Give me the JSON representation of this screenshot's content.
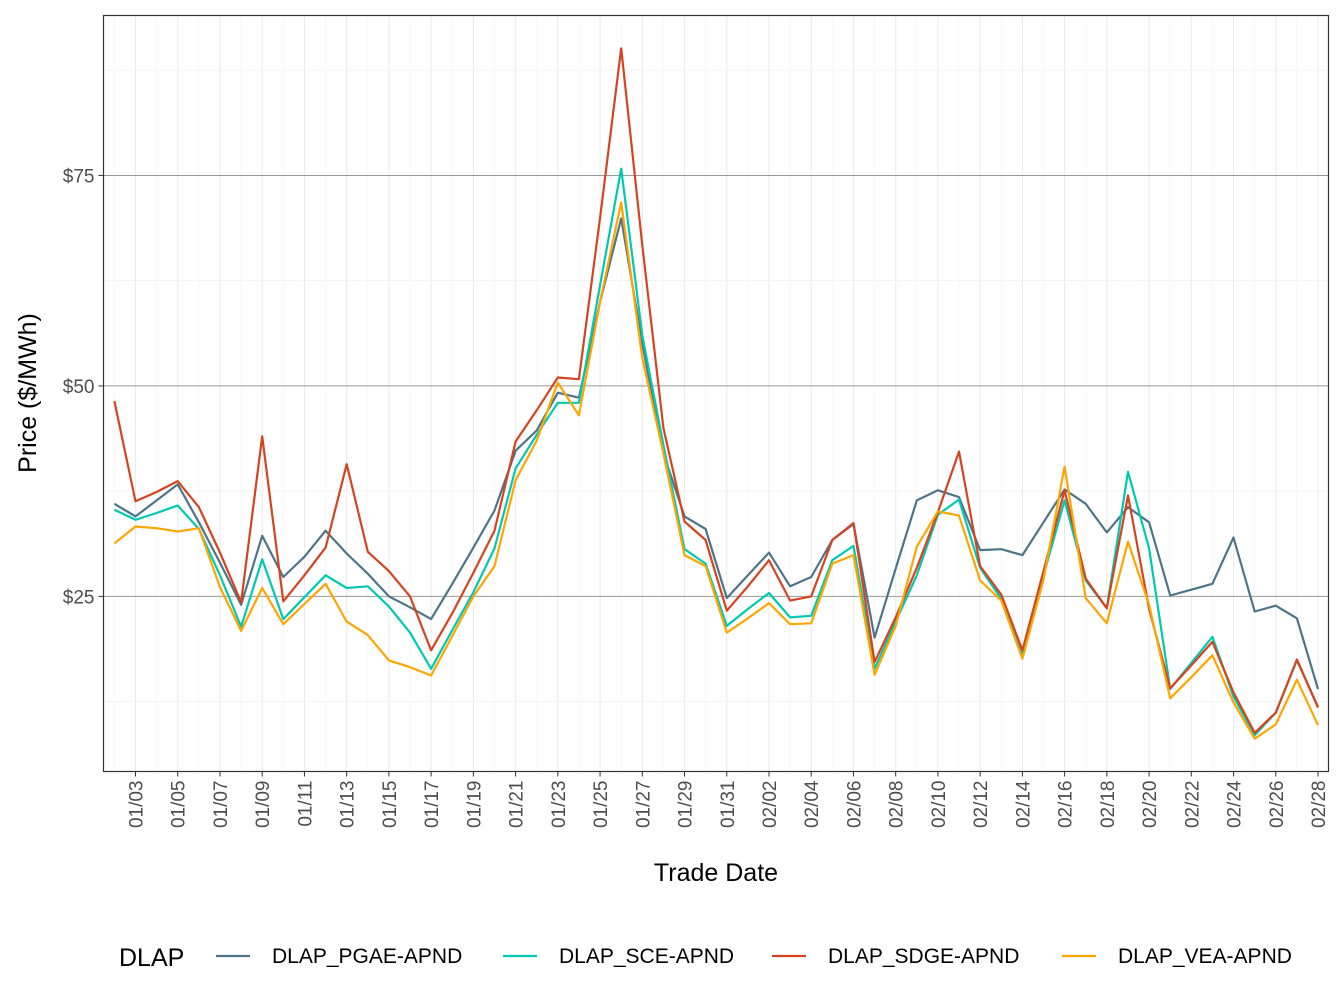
{
  "chart_data": {
    "type": "line",
    "title": "",
    "xlabel": "Trade Date",
    "ylabel": "Price ($/MWh)",
    "ylim": [
      4.2,
      94
    ],
    "y_ticks": [
      25,
      50,
      75
    ],
    "y_tick_labels": [
      "$25",
      "$50",
      "$75"
    ],
    "x_start": "01/02",
    "x_end": "02/28",
    "x_tick_labels": [
      "01/03",
      "01/05",
      "01/07",
      "01/09",
      "01/11",
      "01/13",
      "01/15",
      "01/17",
      "01/19",
      "01/21",
      "01/23",
      "01/25",
      "01/27",
      "01/29",
      "01/31",
      "02/02",
      "02/04",
      "02/06",
      "02/08",
      "02/10",
      "02/12",
      "02/14",
      "02/16",
      "02/18",
      "02/20",
      "02/22",
      "02/24",
      "02/26",
      "02/28"
    ],
    "grid": true,
    "legend": {
      "title": "DLAP",
      "position": "bottom"
    },
    "x": [
      "01/02",
      "01/03",
      "01/04",
      "01/05",
      "01/06",
      "01/07",
      "01/08",
      "01/09",
      "01/10",
      "01/11",
      "01/12",
      "01/13",
      "01/14",
      "01/15",
      "01/16",
      "01/17",
      "01/18",
      "01/19",
      "01/20",
      "01/21",
      "01/22",
      "01/23",
      "01/24",
      "01/25",
      "01/26",
      "01/27",
      "01/28",
      "01/29",
      "01/30",
      "01/31",
      "02/01",
      "02/02",
      "02/03",
      "02/04",
      "02/05",
      "02/06",
      "02/07",
      "02/08",
      "02/09",
      "02/10",
      "02/11",
      "02/12",
      "02/13",
      "02/14",
      "02/15",
      "02/16",
      "02/17",
      "02/18",
      "02/19",
      "02/20",
      "02/21",
      "02/22",
      "02/23",
      "02/24",
      "02/25",
      "02/26",
      "02/27",
      "02/28"
    ],
    "series": [
      {
        "name": "DLAP_PGAE-APND",
        "color": "#4e7489",
        "values": [
          36.0,
          34.5,
          36.4,
          38.3,
          33.8,
          29.0,
          24.0,
          32.2,
          27.3,
          29.7,
          32.8,
          30.1,
          27.7,
          25.0,
          23.7,
          22.3,
          26.5,
          30.8,
          35.2,
          42.3,
          44.7,
          49.2,
          48.6,
          60.0,
          69.9,
          55.0,
          42.0,
          34.5,
          33.0,
          24.8,
          27.5,
          30.2,
          26.2,
          27.3,
          31.7,
          33.6,
          20.1,
          28.3,
          36.4,
          37.6,
          36.8,
          30.5,
          30.6,
          29.9,
          33.8,
          37.7,
          36.0,
          32.6,
          35.6,
          33.8,
          25.1,
          25.8,
          26.5,
          32.0,
          23.2,
          23.9,
          22.4,
          14.0
        ]
      },
      {
        "name": "DLAP_SCE-APND",
        "color": "#00c9b1",
        "values": [
          35.3,
          34.1,
          34.9,
          35.8,
          33.0,
          27.5,
          21.4,
          29.4,
          22.3,
          24.9,
          27.5,
          26.0,
          26.2,
          23.8,
          20.7,
          16.4,
          21.0,
          25.5,
          30.7,
          40.2,
          44.2,
          48.0,
          48.0,
          62.0,
          75.8,
          56.0,
          43.0,
          30.6,
          28.9,
          21.5,
          23.5,
          25.4,
          22.5,
          22.7,
          29.3,
          31.0,
          16.4,
          22.0,
          27.5,
          34.7,
          36.5,
          28.4,
          24.7,
          18.1,
          27.5,
          36.4,
          26.9,
          23.6,
          39.8,
          30.7,
          14.0,
          17.1,
          20.2,
          13.1,
          8.5,
          11.2,
          17.4,
          11.9
        ]
      },
      {
        "name": "DLAP_SDGE-APND",
        "color": "#d5441f",
        "values": [
          48.2,
          36.3,
          37.4,
          38.7,
          35.6,
          30.2,
          24.3,
          44.0,
          24.4,
          27.5,
          30.8,
          40.7,
          30.3,
          28.0,
          25.0,
          18.6,
          23.0,
          27.8,
          32.8,
          43.4,
          47.1,
          51.0,
          50.8,
          70.0,
          90.1,
          66.7,
          45.0,
          33.9,
          31.7,
          23.3,
          26.2,
          29.3,
          24.5,
          25.0,
          31.7,
          33.7,
          17.2,
          22.5,
          28.4,
          35.0,
          42.2,
          28.6,
          25.2,
          18.6,
          28.0,
          37.6,
          27.1,
          23.6,
          37.0,
          23.5,
          14.1,
          16.8,
          19.6,
          13.6,
          8.8,
          11.2,
          17.5,
          11.8
        ]
      },
      {
        "name": "DLAP_VEA-APND",
        "color": "#ffa500",
        "values": [
          31.3,
          33.3,
          33.1,
          32.7,
          33.1,
          26.1,
          20.9,
          26.0,
          21.7,
          24.1,
          26.5,
          22.0,
          20.4,
          17.4,
          16.6,
          15.6,
          20.3,
          25.0,
          28.6,
          38.8,
          43.5,
          50.4,
          46.5,
          60.0,
          71.8,
          53.3,
          42.0,
          29.9,
          28.6,
          20.7,
          22.4,
          24.2,
          21.7,
          21.8,
          28.9,
          29.9,
          15.7,
          21.5,
          30.9,
          35.1,
          34.6,
          26.9,
          24.5,
          17.6,
          27.0,
          40.4,
          24.8,
          21.8,
          31.5,
          24.0,
          12.9,
          15.4,
          18.0,
          12.4,
          8.1,
          9.8,
          15.1,
          9.7
        ]
      }
    ]
  }
}
